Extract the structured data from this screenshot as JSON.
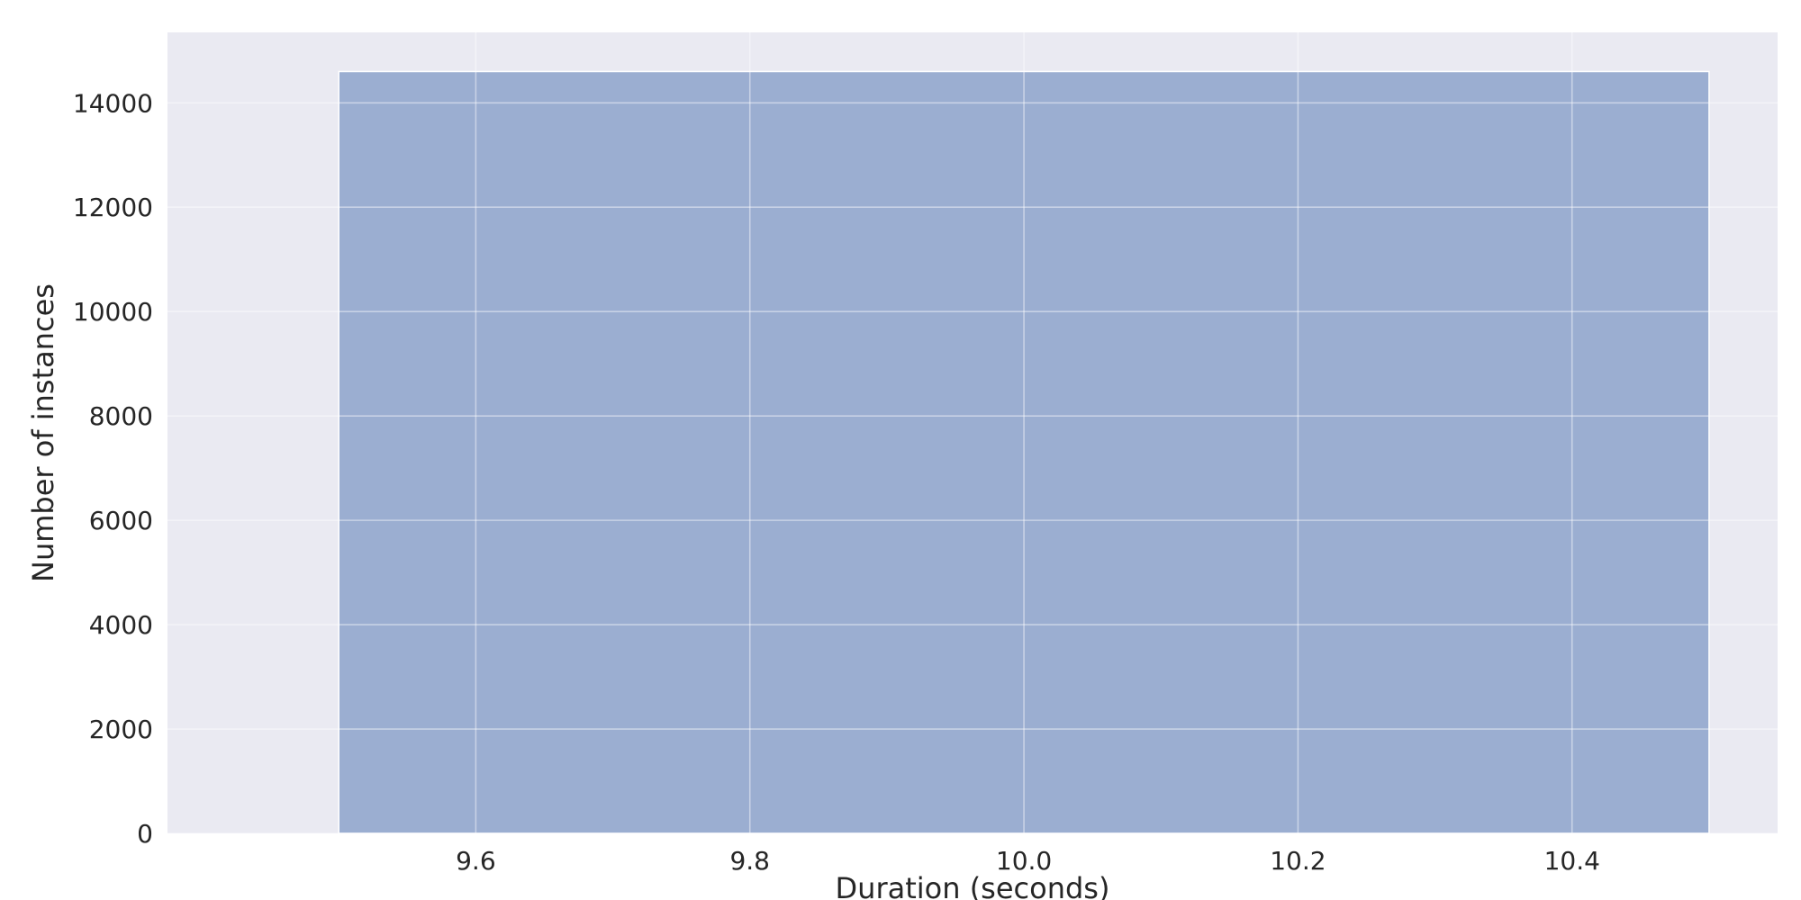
{
  "chart_data": {
    "type": "bar",
    "title": "",
    "xlabel": "Duration (seconds)",
    "ylabel": "Number of instances",
    "bins": [
      {
        "x_start": 9.5,
        "x_end": 10.5,
        "value": 14600
      }
    ],
    "xlim": [
      9.375,
      10.55
    ],
    "ylim": [
      0,
      15350
    ],
    "xticks": [
      9.6,
      9.8,
      10.0,
      10.2,
      10.4
    ],
    "xtick_labels": [
      "9.6",
      "9.8",
      "10.0",
      "10.2",
      "10.4"
    ],
    "yticks": [
      0,
      2000,
      4000,
      6000,
      8000,
      10000,
      12000,
      14000
    ],
    "ytick_labels": [
      "0",
      "2000",
      "4000",
      "6000",
      "8000",
      "10000",
      "12000",
      "14000"
    ],
    "grid": true,
    "colors": {
      "plot_background": "#eaeaf2",
      "bar_fill": "#4c72b0",
      "grid": "#ffffff",
      "text": "#262626"
    }
  }
}
